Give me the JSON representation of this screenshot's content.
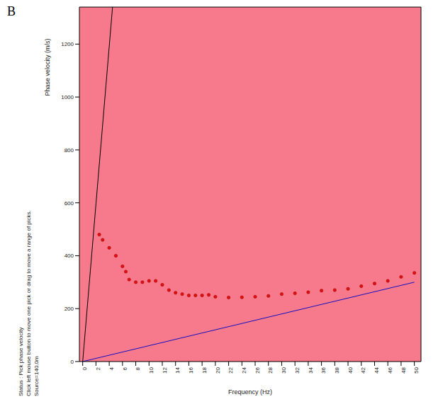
{
  "chart_data": {
    "type": "scatter",
    "panel": "B",
    "x_label": "Frequency (Hz)",
    "y_label": "Phase velocity (m/s)",
    "status": [
      "Status : Pick phase velocity",
      "Click left mouse button to move one pick or drag to move a range of picks.",
      "Source=140.0m"
    ],
    "x": [
      2.5,
      3,
      4,
      5,
      6,
      6.5,
      7,
      8,
      9,
      10,
      11,
      12,
      13,
      14,
      15,
      16,
      17,
      18,
      19,
      20,
      22,
      24,
      26,
      28,
      30,
      32,
      34,
      36,
      38,
      40,
      42,
      44,
      46,
      48,
      50
    ],
    "values": [
      480,
      460,
      430,
      400,
      360,
      340,
      310,
      300,
      300,
      305,
      305,
      290,
      270,
      260,
      255,
      250,
      250,
      250,
      252,
      245,
      242,
      243,
      245,
      248,
      255,
      258,
      262,
      268,
      270,
      275,
      285,
      295,
      305,
      320,
      335
    ],
    "color": "#e01010",
    "marker": "circle",
    "xlim": [
      -0.5,
      51
    ],
    "ylim": [
      0,
      1340
    ],
    "xticks": [
      0,
      2,
      4,
      6,
      8,
      10,
      12,
      14,
      16,
      18,
      20,
      22,
      24,
      26,
      28,
      30,
      32,
      34,
      36,
      38,
      40,
      42,
      44,
      46,
      48,
      50
    ],
    "yticks": [
      0,
      200,
      400,
      600,
      800,
      1000,
      1200
    ],
    "grid": false,
    "lines": [
      {
        "color": "#000000",
        "x": [
          0,
          4.5
        ],
        "values": [
          0,
          1340
        ]
      },
      {
        "color": "#1010c0",
        "x": [
          0,
          50
        ],
        "values": [
          0,
          300
        ]
      }
    ]
  }
}
